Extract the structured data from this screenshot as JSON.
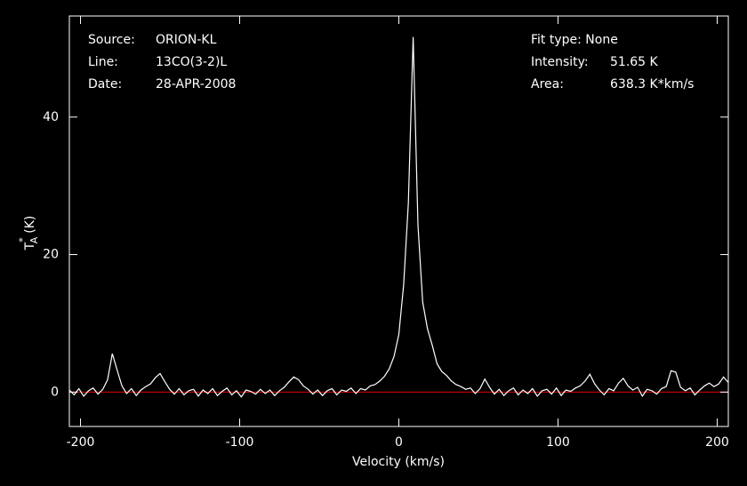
{
  "chart_data": {
    "type": "line",
    "header_left": [
      {
        "key": "Source:",
        "value": "ORION-KL"
      },
      {
        "key": "Line:",
        "value": "13CO(3-2)L"
      },
      {
        "key": "Date:",
        "value": "28-APR-2008"
      }
    ],
    "header_right": {
      "fit": "Fit type: None",
      "rows": [
        {
          "key": "Intensity:",
          "value": "51.65 K"
        },
        {
          "key": "Area:",
          "value": "638.3 K*km/s"
        }
      ]
    },
    "xlabel": "Velocity (km/s)",
    "ylabel": {
      "symbol": "T",
      "sup": "*",
      "sub": "A",
      "unit": "(K)"
    },
    "xlim": [
      -207,
      207
    ],
    "ylim": [
      -5,
      54.7
    ],
    "xticks": [
      -200,
      -100,
      0,
      100,
      200
    ],
    "yticks": [
      0,
      20,
      40
    ],
    "baseline": {
      "value": 0,
      "color": "#d00000"
    },
    "x": [
      -207,
      -204,
      -201,
      -198,
      -195,
      -192,
      -189,
      -186,
      -183,
      -180,
      -177,
      -174,
      -171,
      -168,
      -165,
      -162,
      -159,
      -156,
      -153,
      -150,
      -147,
      -144,
      -141,
      -138,
      -135,
      -132,
      -129,
      -126,
      -123,
      -120,
      -117,
      -114,
      -111,
      -108,
      -105,
      -102,
      -99,
      -96,
      -93,
      -90,
      -87,
      -84,
      -81,
      -78,
      -75,
      -72,
      -69,
      -66,
      -63,
      -60,
      -57,
      -54,
      -51,
      -48,
      -45,
      -42,
      -39,
      -36,
      -33,
      -30,
      -27,
      -24,
      -21,
      -18,
      -15,
      -12,
      -9,
      -6,
      -3,
      0,
      3,
      6,
      9,
      12,
      15,
      18,
      21,
      24,
      27,
      30,
      33,
      36,
      39,
      42,
      45,
      48,
      51,
      54,
      57,
      60,
      63,
      66,
      69,
      72,
      75,
      78,
      81,
      84,
      87,
      90,
      93,
      96,
      99,
      102,
      105,
      108,
      111,
      114,
      117,
      120,
      123,
      126,
      129,
      132,
      135,
      138,
      141,
      144,
      147,
      150,
      153,
      156,
      159,
      162,
      165,
      168,
      171,
      174,
      177,
      180,
      183,
      186,
      189,
      192,
      195,
      198,
      201,
      204,
      207
    ],
    "series": [
      {
        "color": "#ffffff",
        "values": [
          0.3,
          -0.4,
          0.5,
          -0.6,
          0.2,
          0.6,
          -0.3,
          0.4,
          1.8,
          5.6,
          3.2,
          0.9,
          -0.2,
          0.5,
          -0.5,
          0.3,
          0.8,
          1.2,
          2.1,
          2.7,
          1.5,
          0.4,
          -0.3,
          0.5,
          -0.4,
          0.2,
          0.4,
          -0.6,
          0.3,
          -0.2,
          0.5,
          -0.5,
          0.1,
          0.6,
          -0.4,
          0.2,
          -0.7,
          0.3,
          0.1,
          -0.3,
          0.4,
          -0.2,
          0.3,
          -0.5,
          0.2,
          0.7,
          1.5,
          2.2,
          1.8,
          0.9,
          0.4,
          -0.3,
          0.3,
          -0.5,
          0.2,
          0.5,
          -0.4,
          0.3,
          0.1,
          0.6,
          -0.2,
          0.5,
          0.3,
          0.9,
          1.1,
          1.6,
          2.3,
          3.4,
          5.2,
          8.4,
          15.6,
          27.5,
          51.65,
          24.3,
          13.1,
          9.2,
          6.8,
          4.1,
          3.0,
          2.4,
          1.6,
          1.1,
          0.8,
          0.4,
          0.6,
          -0.2,
          0.5,
          1.9,
          0.7,
          -0.3,
          0.4,
          -0.5,
          0.2,
          0.6,
          -0.4,
          0.3,
          -0.2,
          0.5,
          -0.6,
          0.2,
          0.4,
          -0.3,
          0.6,
          -0.5,
          0.3,
          0.1,
          0.6,
          0.9,
          1.6,
          2.6,
          1.2,
          0.3,
          -0.4,
          0.5,
          0.2,
          1.3,
          2.0,
          0.9,
          0.3,
          0.7,
          -0.6,
          0.4,
          0.2,
          -0.3,
          0.5,
          0.8,
          3.1,
          2.9,
          0.7,
          0.2,
          0.6,
          -0.4,
          0.3,
          0.9,
          1.3,
          0.8,
          1.2,
          2.2,
          1.4
        ]
      }
    ]
  }
}
